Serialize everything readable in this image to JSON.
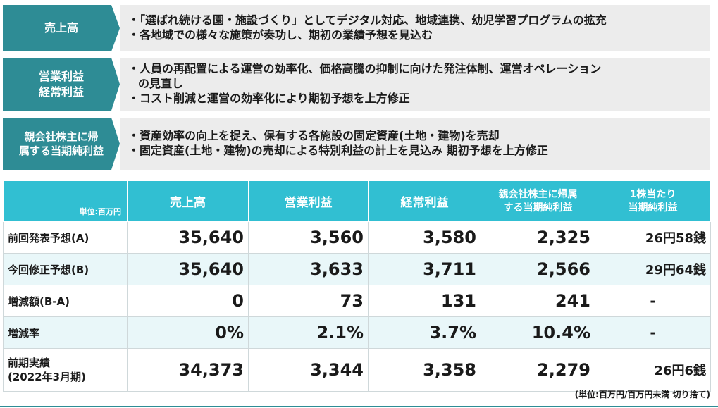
{
  "summary": [
    {
      "label_lines": [
        "売上高"
      ],
      "lines": [
        "・「選ばれ続ける園・施設づくり」としてデジタル対応、地域連携、幼児学習プログラムの拡充",
        "・各地域での様々な施策が奏功し、期初の業績予想を見込む"
      ]
    },
    {
      "label_lines": [
        "営業利益",
        "経常利益"
      ],
      "lines": [
        "・人員の再配置による運営の効率化、価格高騰の抑制に向けた発注体制、運営オペレーション",
        "の見直し",
        "・コスト削減と運営の効率化により期初予想を上方修正"
      ]
    },
    {
      "label_lines": [
        "親会社株主に帰",
        "属する当期純利益"
      ],
      "lines": [
        "・資産効率の向上を捉え、保有する各施設の固定資産(土地・建物)を売却",
        "・固定資産(土地・建物)の売却による特別利益の計上を見込み 期初予想を上方修正"
      ]
    }
  ],
  "table": {
    "unit_label": "単位:百万円",
    "headers": [
      "売上高",
      "営業利益",
      "経常利益",
      "親会社株主に帰属\nする当期純利益",
      "1株当たり\n当期純利益"
    ],
    "rows": [
      {
        "label": "前回発表予想(A)",
        "values": [
          "35,640",
          "3,560",
          "3,580",
          "2,325",
          "26円58銭"
        ]
      },
      {
        "label": "今回修正予想(B)",
        "values": [
          "35,640",
          "3,633",
          "3,711",
          "2,566",
          "29円64銭"
        ]
      },
      {
        "label": "増減額(B-A)",
        "values": [
          "0",
          "73",
          "131",
          "241",
          "-"
        ]
      },
      {
        "label": "増減率",
        "values": [
          "0%",
          "2.1%",
          "3.7%",
          "10.4%",
          "-"
        ]
      },
      {
        "label": "前期実績\n(2022年3月期)",
        "values": [
          "34,373",
          "3,344",
          "3,358",
          "2,279",
          "26円6銭"
        ]
      }
    ]
  },
  "note": "(単位:百万円/百万円未満 切り捨て)",
  "colors": {
    "accent_dark": "#2e8c95",
    "header_cyan": "#31bfd2",
    "row_tint": "#e9f7f9"
  }
}
